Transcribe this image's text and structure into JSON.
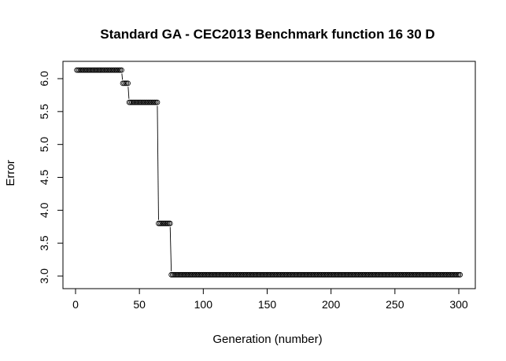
{
  "chart_data": {
    "type": "scatter",
    "style": "points-connected-by-lines",
    "title": "Standard GA - CEC2013 Benchmark function  16 30 D",
    "xlabel": "Generation (number)",
    "ylabel": "Error",
    "xlim": [
      0,
      300
    ],
    "ylim": [
      3.0,
      6.0
    ],
    "x_ticks": [
      "0",
      "50",
      "100",
      "150",
      "200",
      "250",
      "300"
    ],
    "y_ticks": [
      "3.0",
      "3.5",
      "4.0",
      "4.5",
      "5.0",
      "5.5",
      "6.0"
    ],
    "grid": false,
    "legend": "none",
    "marker": "open-circle",
    "colors": {
      "marker": "#000000",
      "line": "#000000",
      "background": "#ffffff"
    },
    "segments": [
      {
        "x_start": 1,
        "x_end": 36,
        "y": 6.13
      },
      {
        "x_start": 37,
        "x_end": 41,
        "y": 5.93
      },
      {
        "x_start": 42,
        "x_end": 64,
        "y": 5.64
      },
      {
        "x_start": 65,
        "x_end": 74,
        "y": 3.8
      },
      {
        "x_start": 75,
        "x_end": 301,
        "y": 3.02
      }
    ]
  }
}
